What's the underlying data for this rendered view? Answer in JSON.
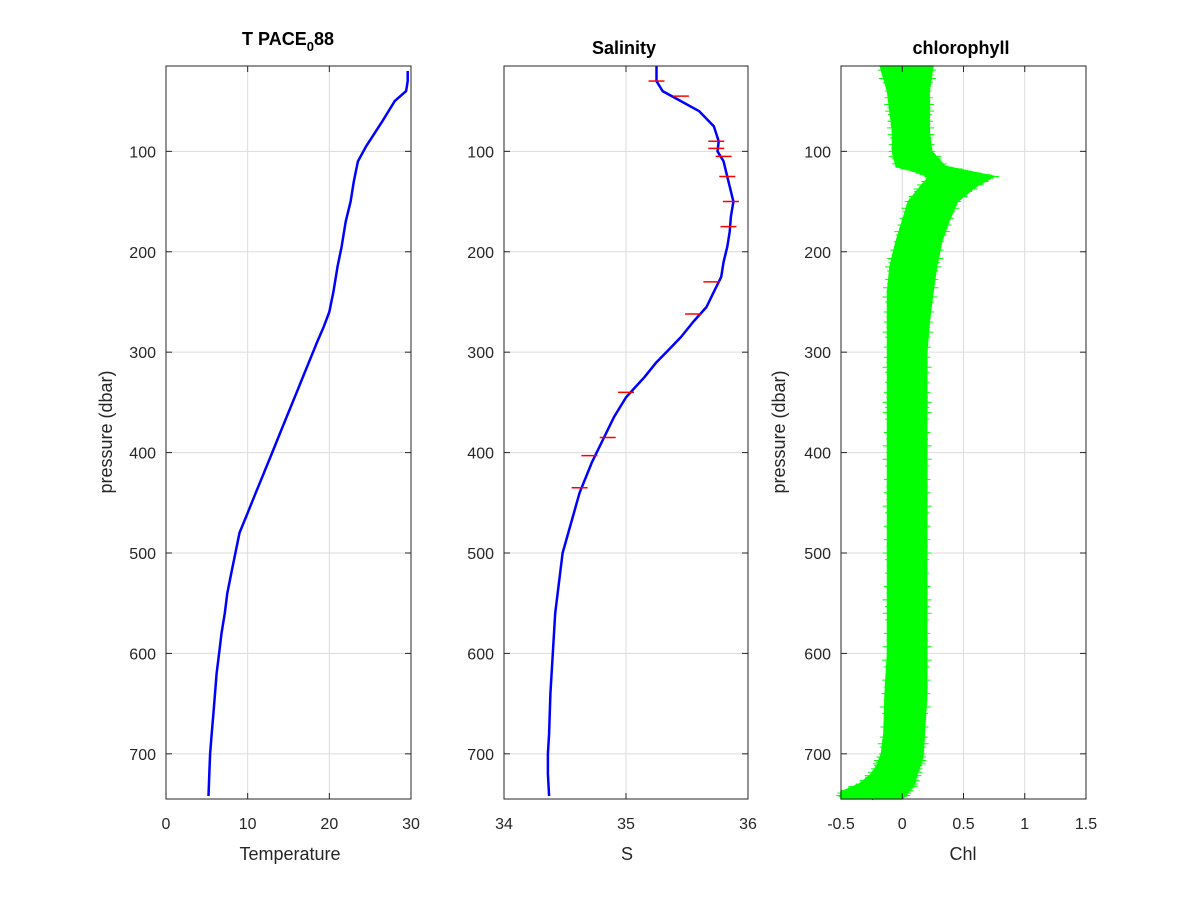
{
  "figure": {
    "panels": [
      {
        "title_main": "T PACE",
        "title_sub": "0",
        "title_tail": "88",
        "xlabel": "Temperature",
        "ylabel": "pressure (dbar)",
        "x_ticks": [
          "0",
          "10",
          "20",
          "30"
        ],
        "y_ticks": [
          "100",
          "200",
          "300",
          "400",
          "500",
          "600",
          "700"
        ]
      },
      {
        "title": "Salinity",
        "xlabel": "S",
        "ylabel": "",
        "x_ticks": [
          "34",
          "35",
          "36"
        ],
        "y_ticks": [
          "100",
          "200",
          "300",
          "400",
          "500",
          "600",
          "700"
        ]
      },
      {
        "title": "chlorophyll",
        "xlabel": "Chl",
        "ylabel": "pressure (dbar)",
        "x_ticks": [
          "-0.5",
          "0",
          "0.5",
          "1",
          "1.5"
        ],
        "y_ticks": [
          "100",
          "200",
          "300",
          "400",
          "500",
          "600",
          "700"
        ]
      }
    ]
  },
  "chart_data": [
    {
      "type": "line",
      "title": "T PACE_088",
      "xlabel": "Temperature",
      "ylabel": "pressure (dbar)",
      "xlim": [
        0,
        30
      ],
      "ylim": [
        745,
        15
      ],
      "y_reversed": true,
      "grid": true,
      "series": [
        {
          "color": "#0000ff",
          "x": [
            29.6,
            29.6,
            29.4,
            28.0,
            26.5,
            24.5,
            23.5,
            23.0,
            22.6,
            22.0,
            21.5,
            21.0,
            20.5,
            20.0,
            19.3,
            18.5,
            18.0,
            17.0,
            16.0,
            15.0,
            14.0,
            13.0,
            12.0,
            11.0,
            10.0,
            9.0,
            8.5,
            8.0,
            7.5,
            7.2,
            6.8,
            6.5,
            6.2,
            6.0,
            5.8,
            5.6,
            5.4,
            5.3,
            5.2
          ],
          "y": [
            20,
            30,
            40,
            50,
            70,
            95,
            110,
            130,
            150,
            170,
            195,
            215,
            240,
            260,
            275,
            290,
            300,
            320,
            340,
            360,
            380,
            400,
            420,
            440,
            460,
            480,
            500,
            520,
            540,
            560,
            580,
            600,
            620,
            640,
            660,
            680,
            700,
            720,
            742
          ]
        }
      ]
    },
    {
      "type": "line",
      "title": "Salinity",
      "xlabel": "S",
      "ylabel": "",
      "xlim": [
        34,
        36
      ],
      "ylim": [
        745,
        15
      ],
      "y_reversed": true,
      "grid": true,
      "series": [
        {
          "color": "#0000ff",
          "x": [
            35.25,
            35.25,
            35.3,
            35.45,
            35.6,
            35.72,
            35.76,
            35.75,
            35.8,
            35.82,
            35.85,
            35.88,
            35.86,
            35.85,
            35.83,
            35.8,
            35.78,
            35.72,
            35.66,
            35.55,
            35.45,
            35.33,
            35.25,
            35.15,
            35.0,
            34.9,
            34.82,
            34.72,
            34.62,
            34.55,
            34.48,
            34.45,
            34.42,
            34.4,
            34.38,
            34.37,
            34.36,
            34.36,
            34.37
          ],
          "y": [
            15,
            30,
            40,
            50,
            60,
            75,
            90,
            100,
            110,
            120,
            135,
            150,
            165,
            180,
            195,
            210,
            225,
            240,
            255,
            270,
            285,
            300,
            310,
            325,
            345,
            365,
            385,
            410,
            440,
            470,
            500,
            530,
            560,
            600,
            640,
            680,
            700,
            720,
            742
          ]
        },
        {
          "color": "#ff0000",
          "x": [
            35.25,
            35.45,
            35.74,
            35.74,
            35.8,
            35.83,
            35.86,
            35.84,
            35.7,
            35.55,
            35.0,
            34.85,
            34.7,
            34.62
          ],
          "y": [
            30,
            45,
            90,
            97,
            105,
            125,
            150,
            175,
            230,
            262,
            340,
            385,
            403,
            435
          ]
        }
      ]
    },
    {
      "type": "line",
      "title": "chlorophyll",
      "xlabel": "Chl",
      "ylabel": "pressure (dbar)",
      "xlim": [
        -0.5,
        1.5
      ],
      "ylim": [
        745,
        15
      ],
      "y_reversed": true,
      "grid": true,
      "series": [
        {
          "color": "#000000",
          "x": [
            0.04,
            0.05,
            0.06,
            0.07,
            0.08,
            0.1,
            0.3,
            0.45,
            0.35,
            0.25,
            0.2,
            0.15,
            0.1,
            0.08,
            0.06,
            0.05,
            0.04,
            0.04,
            0.03,
            0.03,
            0.03,
            0.03,
            0.03,
            0.03,
            0.02,
            0.02,
            0.01,
            0.0,
            0.0,
            -0.05,
            -0.15,
            -0.25
          ],
          "y": [
            15,
            40,
            60,
            80,
            100,
            115,
            120,
            125,
            135,
            150,
            170,
            190,
            215,
            240,
            270,
            300,
            330,
            360,
            400,
            440,
            480,
            520,
            560,
            600,
            640,
            680,
            700,
            710,
            720,
            730,
            738,
            745
          ]
        },
        {
          "name": "",
          "color": "#00ff00",
          "x_low": [
            -0.18,
            -0.12,
            -0.1,
            -0.08,
            -0.08,
            -0.05,
            0.1,
            0.22,
            0.15,
            0.05,
            0.0,
            -0.05,
            -0.1,
            -0.12,
            -0.12,
            -0.12,
            -0.12,
            -0.12,
            -0.12,
            -0.12,
            -0.12,
            -0.12,
            -0.12,
            -0.12,
            -0.14,
            -0.15,
            -0.17,
            -0.2,
            -0.25,
            -0.35,
            -0.5,
            -0.5
          ],
          "x_high": [
            0.25,
            0.22,
            0.22,
            0.22,
            0.24,
            0.35,
            0.55,
            0.75,
            0.6,
            0.45,
            0.38,
            0.32,
            0.28,
            0.25,
            0.22,
            0.2,
            0.2,
            0.2,
            0.2,
            0.2,
            0.2,
            0.2,
            0.2,
            0.2,
            0.2,
            0.18,
            0.17,
            0.15,
            0.12,
            0.1,
            0.05,
            0.0
          ],
          "y": [
            15,
            40,
            60,
            80,
            100,
            115,
            120,
            125,
            135,
            150,
            170,
            190,
            215,
            240,
            270,
            300,
            330,
            360,
            400,
            440,
            480,
            520,
            560,
            600,
            640,
            680,
            700,
            710,
            720,
            730,
            738,
            745
          ]
        }
      ]
    }
  ]
}
